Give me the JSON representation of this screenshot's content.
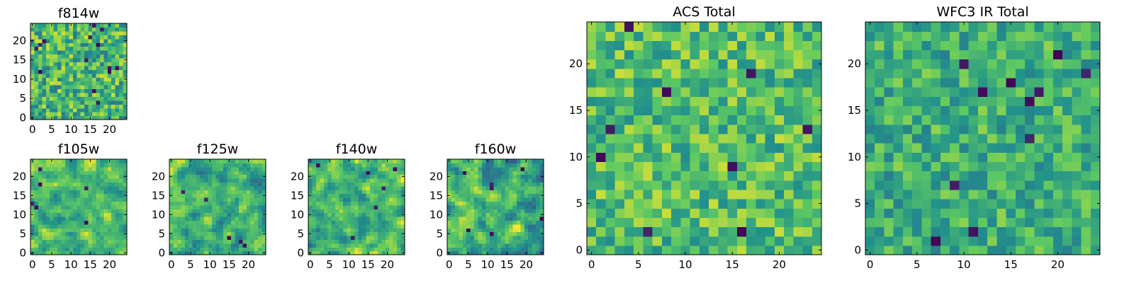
{
  "colormap": "viridis",
  "colormap_stops": [
    "#440154",
    "#3b528b",
    "#21918c",
    "#5ec962",
    "#fde725"
  ],
  "chart_data": [
    {
      "type": "heatmap",
      "title": "f814w",
      "grid": [
        25,
        25
      ],
      "xlim": [
        0,
        24
      ],
      "ylim": [
        0,
        24
      ],
      "xticks": [
        0,
        5,
        10,
        15,
        20
      ],
      "yticks": [
        0,
        5,
        10,
        15,
        20
      ],
      "xtick_labels": [
        "0",
        "5",
        "10",
        "15",
        "20"
      ],
      "ytick_labels": [
        "0",
        "5",
        "10",
        "15",
        "20"
      ],
      "texture": "pixel",
      "seed": 11,
      "mean": 0.66,
      "spread": 0.26,
      "dark_count": 14
    },
    {
      "type": "heatmap",
      "title": "f105w",
      "grid": [
        25,
        25
      ],
      "xlim": [
        0,
        24
      ],
      "ylim": [
        0,
        24
      ],
      "xticks": [
        0,
        5,
        10,
        15,
        20
      ],
      "yticks": [
        0,
        5,
        10,
        15,
        20
      ],
      "xtick_labels": [
        "0",
        "5",
        "10",
        "15",
        "20"
      ],
      "ytick_labels": [
        "0",
        "5",
        "10",
        "15",
        "20"
      ],
      "texture": "smooth",
      "seed": 23,
      "mean": 0.68,
      "spread": 0.24,
      "dark_count": 6
    },
    {
      "type": "heatmap",
      "title": "f125w",
      "grid": [
        25,
        25
      ],
      "xlim": [
        0,
        24
      ],
      "ylim": [
        0,
        24
      ],
      "xticks": [
        0,
        5,
        10,
        15,
        20
      ],
      "yticks": [
        0,
        5,
        10,
        15,
        20
      ],
      "xtick_labels": [
        "0",
        "5",
        "10",
        "15",
        "20"
      ],
      "ytick_labels": [
        "0",
        "5",
        "10",
        "15",
        "20"
      ],
      "texture": "smooth",
      "seed": 37,
      "mean": 0.64,
      "spread": 0.26,
      "dark_count": 5
    },
    {
      "type": "heatmap",
      "title": "f140w",
      "grid": [
        25,
        25
      ],
      "xlim": [
        0,
        24
      ],
      "ylim": [
        0,
        24
      ],
      "xticks": [
        0,
        5,
        10,
        15,
        20
      ],
      "yticks": [
        0,
        5,
        10,
        15,
        20
      ],
      "xtick_labels": [
        "0",
        "5",
        "10",
        "15",
        "20"
      ],
      "ytick_labels": [
        "0",
        "5",
        "10",
        "15",
        "20"
      ],
      "texture": "smooth",
      "seed": 41,
      "mean": 0.66,
      "spread": 0.26,
      "dark_count": 6
    },
    {
      "type": "heatmap",
      "title": "f160w",
      "grid": [
        25,
        25
      ],
      "xlim": [
        0,
        24
      ],
      "ylim": [
        0,
        24
      ],
      "xticks": [
        0,
        5,
        10,
        15,
        20
      ],
      "yticks": [
        0,
        5,
        10,
        15,
        20
      ],
      "xtick_labels": [
        "0",
        "5",
        "10",
        "15",
        "20"
      ],
      "ytick_labels": [
        "0",
        "5",
        "10",
        "15",
        "20"
      ],
      "texture": "smooth",
      "seed": 53,
      "mean": 0.64,
      "spread": 0.27,
      "dark_count": 7
    },
    {
      "type": "heatmap",
      "title": "ACS Total",
      "grid": [
        25,
        25
      ],
      "xlim": [
        0,
        24
      ],
      "ylim": [
        0,
        24
      ],
      "xticks": [
        0,
        5,
        10,
        15,
        20
      ],
      "yticks": [
        0,
        5,
        10,
        15,
        20
      ],
      "xtick_labels": [
        "0",
        "5",
        "10",
        "15",
        "20"
      ],
      "ytick_labels": [
        "0",
        "5",
        "10",
        "15",
        "20"
      ],
      "texture": "pixel",
      "seed": 67,
      "mean": 0.7,
      "spread": 0.22,
      "dark_count": 9
    },
    {
      "type": "heatmap",
      "title": "WFC3 IR Total",
      "grid": [
        25,
        25
      ],
      "xlim": [
        0,
        24
      ],
      "ylim": [
        0,
        24
      ],
      "xticks": [
        0,
        5,
        10,
        15,
        20
      ],
      "yticks": [
        0,
        5,
        10,
        15,
        20
      ],
      "xtick_labels": [
        "0",
        "5",
        "10",
        "15",
        "20"
      ],
      "ytick_labels": [
        "0",
        "5",
        "10",
        "15",
        "20"
      ],
      "texture": "pixel",
      "seed": 79,
      "mean": 0.63,
      "spread": 0.2,
      "dark_count": 11
    }
  ]
}
